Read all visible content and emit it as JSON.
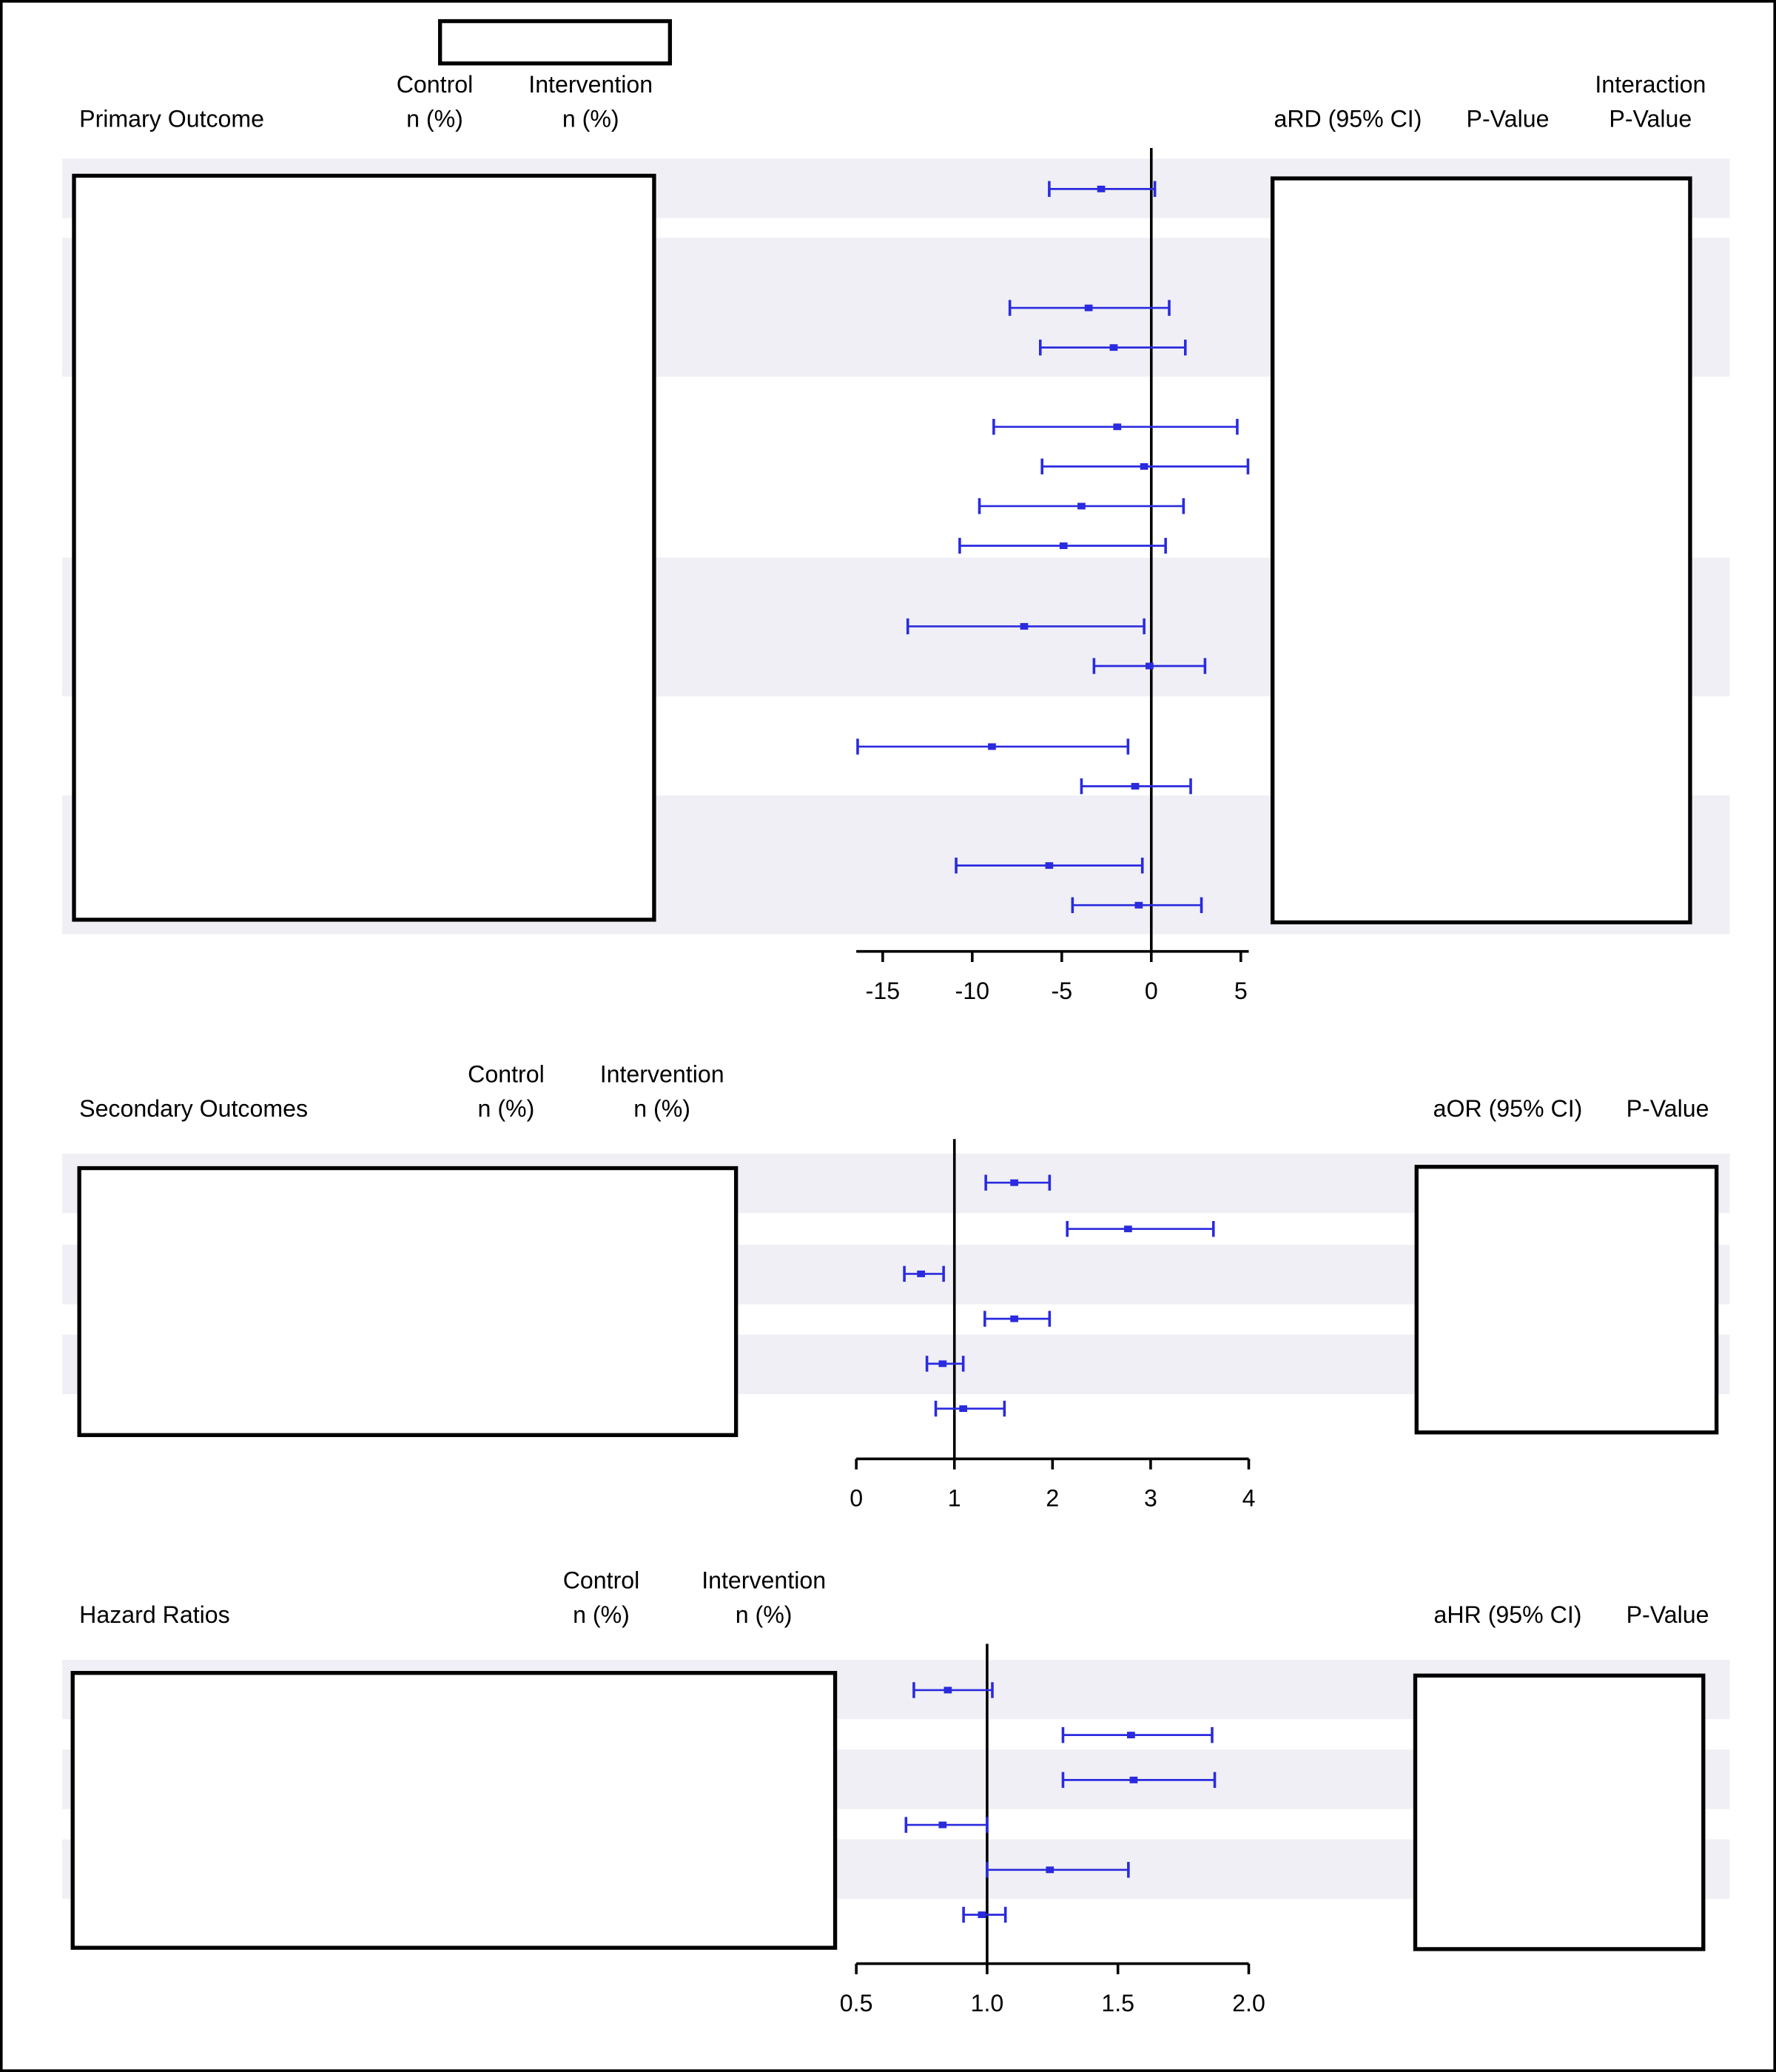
{
  "colors": {
    "marker": "#2a2adf",
    "band": "#efeff5",
    "axis": "#000000"
  },
  "chart_data": [
    {
      "type": "forest",
      "header": {
        "section": "Primary Outcome",
        "control": [
          "Control",
          "n (%)"
        ],
        "intervention": [
          "Intervention",
          "n (%)"
        ],
        "effect": "aRD (95% CI)",
        "pvalue": "P-Value",
        "interaction": [
          "Interaction",
          "P-Value"
        ]
      },
      "reference": 0,
      "xlim": [
        -16.5,
        5.5
      ],
      "ticks": [
        -15,
        -10,
        -5,
        0,
        5
      ],
      "tick_labels": [
        "-15",
        "-10",
        "-5",
        "0",
        "5"
      ],
      "estimates": [
        -2.8,
        -3.5,
        -2.1,
        -1.9,
        -0.4,
        -3.9,
        -4.9,
        -7.1,
        -0.1,
        -8.9,
        -0.9,
        -5.7,
        -0.7
      ],
      "lower": [
        -5.7,
        -7.9,
        -6.2,
        -8.8,
        -6.1,
        -9.6,
        -10.7,
        -13.6,
        -3.2,
        -16.4,
        -3.9,
        -10.9,
        -4.4
      ],
      "upper": [
        0.2,
        1.0,
        1.9,
        4.8,
        5.4,
        1.8,
        0.8,
        -0.4,
        3.0,
        -1.3,
        2.2,
        -0.5,
        2.8
      ]
    },
    {
      "type": "forest",
      "header": {
        "section": "Secondary Outcomes",
        "control": [
          "Control",
          "n (%)"
        ],
        "intervention": [
          "Intervention",
          "n (%)"
        ],
        "effect": "aOR (95% CI)",
        "pvalue": "P-Value"
      },
      "reference": 1,
      "xlim": [
        0,
        4
      ],
      "ticks": [
        0,
        1,
        2,
        3,
        4
      ],
      "tick_labels": [
        "0",
        "1",
        "2",
        "3",
        "4"
      ],
      "estimates": [
        1.61,
        2.77,
        0.66,
        1.61,
        0.88,
        1.09
      ],
      "lower": [
        1.32,
        2.15,
        0.49,
        1.31,
        0.72,
        0.81
      ],
      "upper": [
        1.97,
        3.64,
        0.89,
        1.97,
        1.09,
        1.51
      ]
    },
    {
      "type": "forest",
      "header": {
        "section": "Hazard Ratios",
        "control": [
          "Control",
          "n (%)"
        ],
        "intervention": [
          "Intervention",
          "n (%)"
        ],
        "effect": "aHR (95% CI)",
        "pvalue": "P-Value"
      },
      "reference": 1,
      "xlim": [
        0.5,
        2.0
      ],
      "ticks": [
        0.5,
        1.0,
        1.5,
        2.0
      ],
      "tick_labels": [
        "0.5",
        "1.0",
        "1.5",
        "2.0"
      ],
      "estimates": [
        0.85,
        1.55,
        1.56,
        0.83,
        1.24,
        0.98
      ],
      "lower": [
        0.72,
        1.29,
        1.29,
        0.69,
        1.0,
        0.91
      ],
      "upper": [
        1.02,
        1.86,
        1.87,
        1.0,
        1.54,
        1.07
      ]
    }
  ]
}
